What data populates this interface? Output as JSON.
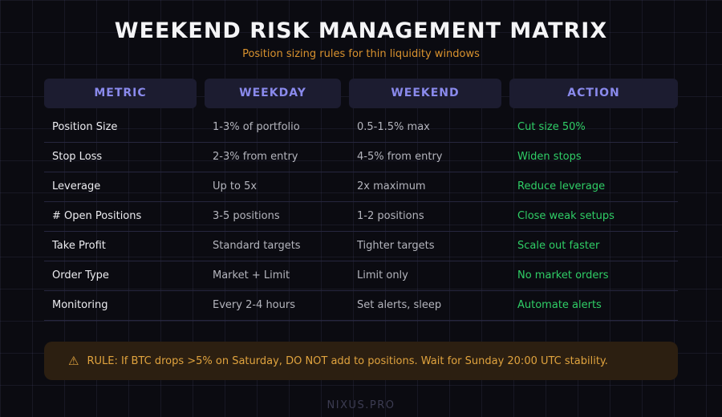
{
  "page": {
    "title": "WEEKEND RISK MANAGEMENT MATRIX",
    "subtitle": "Position sizing rules for thin liquidity windows",
    "footer": "NIXUS.PRO"
  },
  "table": {
    "headers": [
      "METRIC",
      "WEEKDAY",
      "WEEKEND",
      "ACTION"
    ],
    "rows": [
      {
        "metric": "Position Size",
        "weekday": "1-3% of portfolio",
        "weekend": "0.5-1.5% max",
        "action": "Cut size 50%"
      },
      {
        "metric": "Stop Loss",
        "weekday": "2-3% from entry",
        "weekend": "4-5% from entry",
        "action": "Widen stops"
      },
      {
        "metric": "Leverage",
        "weekday": "Up to 5x",
        "weekend": "2x maximum",
        "action": "Reduce leverage"
      },
      {
        "metric": "# Open Positions",
        "weekday": "3-5 positions",
        "weekend": "1-2 positions",
        "action": "Close weak setups"
      },
      {
        "metric": "Take Profit",
        "weekday": "Standard targets",
        "weekend": "Tighter targets",
        "action": "Scale out faster"
      },
      {
        "metric": "Order Type",
        "weekday": "Market + Limit",
        "weekend": "Limit only",
        "action": "No market orders"
      },
      {
        "metric": "Monitoring",
        "weekday": "Every 2-4 hours",
        "weekend": "Set alerts, sleep",
        "action": "Automate alerts"
      }
    ]
  },
  "rule": {
    "icon": "⚠",
    "text": "RULE: If BTC drops >5% on Saturday, DO NOT add to positions. Wait for Sunday 20:00 UTC stability."
  },
  "colors": {
    "background": "#0b0b11",
    "divider": "#26263e",
    "header_box": "#1c1c30",
    "header_text": "#8a8aec",
    "title_text": "#f4f4f6",
    "accent_orange": "#d9922e",
    "metric_text": "#ececf0",
    "muted_gray": "#b4b5bd",
    "action_green": "#2fce66",
    "rule_box": "#2c1f11",
    "rule_text": "#e0a33e",
    "footer_text": "#3c3c52"
  },
  "chart_data": {
    "type": "table",
    "title": "WEEKEND RISK MANAGEMENT MATRIX",
    "subtitle": "Position sizing rules for thin liquidity windows",
    "columns": [
      "METRIC",
      "WEEKDAY",
      "WEEKEND",
      "ACTION"
    ],
    "rows": [
      [
        "Position Size",
        "1-3% of portfolio",
        "0.5-1.5% max",
        "Cut size 50%"
      ],
      [
        "Stop Loss",
        "2-3% from entry",
        "4-5% from entry",
        "Widen stops"
      ],
      [
        "Leverage",
        "Up to 5x",
        "2x maximum",
        "Reduce leverage"
      ],
      [
        "# Open Positions",
        "3-5 positions",
        "1-2 positions",
        "Close weak setups"
      ],
      [
        "Take Profit",
        "Standard targets",
        "Tighter targets",
        "Scale out faster"
      ],
      [
        "Order Type",
        "Market + Limit",
        "Limit only",
        "No market orders"
      ],
      [
        "Monitoring",
        "Every 2-4 hours",
        "Set alerts, sleep",
        "Automate alerts"
      ]
    ],
    "annotation": "⚠ RULE: If BTC drops >5% on Saturday, DO NOT add to positions. Wait for Sunday 20:00 UTC stability.",
    "footer": "NIXUS.PRO",
    "grid": true,
    "legend_position": "none"
  }
}
